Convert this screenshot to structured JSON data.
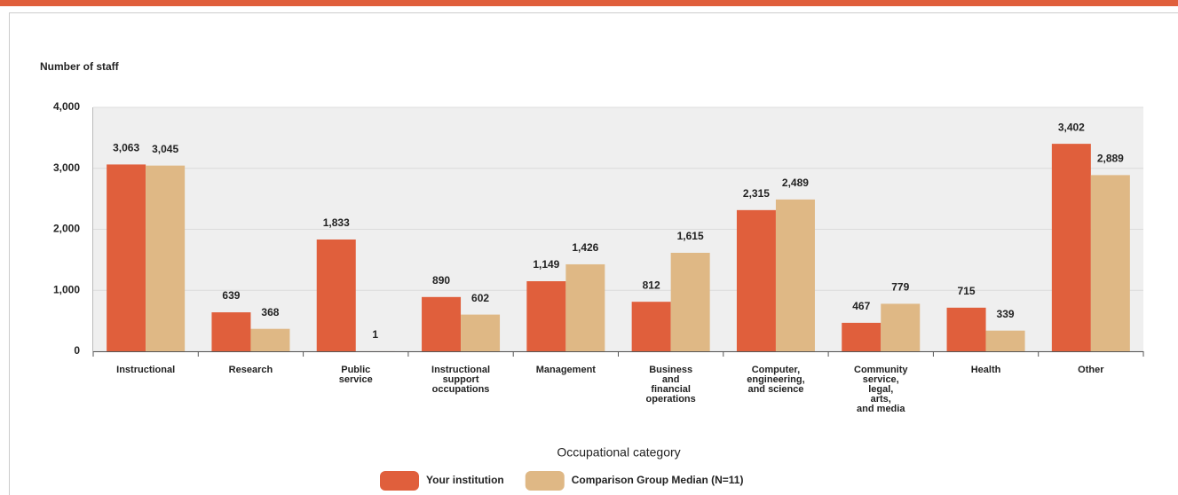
{
  "chart_data": {
    "type": "bar",
    "y_label": "Number of staff",
    "x_label": "Occupational category",
    "categories": [
      [
        "Instructional"
      ],
      [
        "Research"
      ],
      [
        "Public",
        "service"
      ],
      [
        "Instructional",
        "support",
        "occupations"
      ],
      [
        "Management"
      ],
      [
        "Business",
        "and",
        "financial",
        "operations"
      ],
      [
        "Computer,",
        "engineering,",
        "and science"
      ],
      [
        "Community",
        "service,",
        "legal,",
        "arts,",
        "and media"
      ],
      [
        "Health"
      ],
      [
        "Other"
      ]
    ],
    "series": [
      {
        "name": "Your institution",
        "color": "#e05f3c",
        "values": [
          3063,
          639,
          1833,
          890,
          1149,
          812,
          2315,
          467,
          715,
          3402
        ],
        "value_labels": [
          "3,063",
          "639",
          "1,833",
          "890",
          "1,149",
          "812",
          "2,315",
          "467",
          "715",
          "3,402"
        ]
      },
      {
        "name": "Comparison Group Median (N=11)",
        "color": "#dfb885",
        "values": [
          3045,
          368,
          1,
          602,
          1426,
          1615,
          2489,
          779,
          339,
          2889
        ],
        "value_labels": [
          "3,045",
          "368",
          "1",
          "602",
          "1,426",
          "1,615",
          "2,489",
          "779",
          "339",
          "2,889"
        ]
      }
    ],
    "ylim": [
      0,
      4000
    ],
    "yticks": [
      0,
      {
        "value": 1000,
        "label": "1,000"
      },
      {
        "value": 2000,
        "label": "2,000"
      },
      {
        "value": 3000,
        "label": "3,000"
      },
      {
        "value": 4000,
        "label": "4,000"
      }
    ],
    "grid": true
  }
}
